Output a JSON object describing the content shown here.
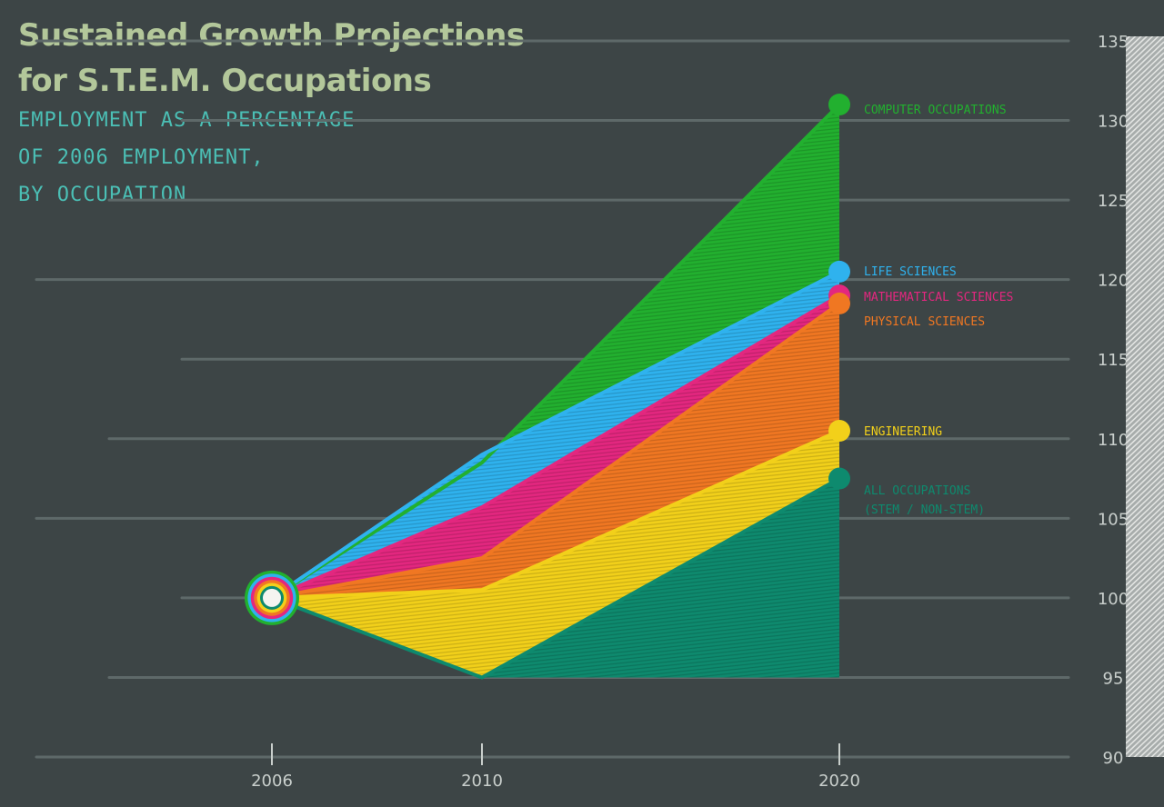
{
  "chart_data": {
    "type": "area",
    "title_lines": [
      "Sustained Growth Projections",
      "for S.T.E.M. Occupations"
    ],
    "subtitle_lines": [
      "EMPLOYMENT AS A PERCENTAGE",
      "OF 2006 EMPLOYMENT,",
      "BY OCCUPATION"
    ],
    "x": [
      2006,
      2010,
      2020
    ],
    "x_tick_labels": [
      "2006",
      "2010",
      "2020"
    ],
    "ylim": [
      90,
      135
    ],
    "y_ticks": [
      90,
      95,
      100,
      105,
      110,
      115,
      120,
      125,
      130,
      135
    ],
    "y_tick_labels": [
      "90",
      "95",
      "100",
      "105",
      "110",
      "115",
      "120",
      "125",
      "130",
      "135"
    ],
    "grid": true,
    "legend": "right, labels beside series ends",
    "series": [
      {
        "name": "COMPUTER OCCUPATIONS",
        "values": [
          100,
          108.5,
          131
        ],
        "color": "#22b02f"
      },
      {
        "name": "LIFE SCIENCES",
        "values": [
          100,
          109,
          120.5
        ],
        "color": "#2fb2ee"
      },
      {
        "name": "MATHEMATICAL SCIENCES",
        "values": [
          100,
          105.7,
          119
        ],
        "color": "#e3277f"
      },
      {
        "name": "PHYSICAL SCIENCES",
        "values": [
          100,
          102.5,
          118.5
        ],
        "color": "#f07722"
      },
      {
        "name": "ENGINEERING",
        "values": [
          100,
          100.5,
          110.5
        ],
        "color": "#f2d01a"
      },
      {
        "name": "ALL OCCUPATIONS",
        "name_line2": "(STEM / NON-STEM)",
        "values": [
          100,
          95,
          107.5
        ],
        "color": "#0e8a6e"
      }
    ]
  }
}
